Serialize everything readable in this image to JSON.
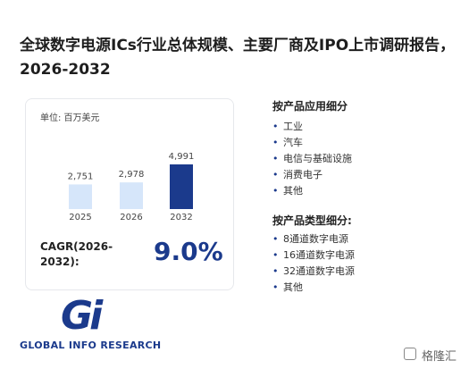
{
  "title": "全球数字电源ICs行业总体规模、主要厂商及IPO上市调研报告，2026-2032",
  "chart_data": {
    "type": "bar",
    "unit": "单位: 百万美元",
    "categories": [
      "2025",
      "2026",
      "2032"
    ],
    "values": [
      2751,
      2978,
      4991
    ],
    "value_labels": [
      "2,751",
      "2,978",
      "4,991"
    ],
    "colors": [
      "#d6e6fa",
      "#d6e6fa",
      "#1b3a8c"
    ],
    "cagr_label": "CAGR(2026-2032):",
    "cagr_value": "9.0%"
  },
  "application": {
    "heading": "按产品应用细分",
    "items": [
      "工业",
      "汽车",
      "电信与基础设施",
      "消费电子",
      "其他"
    ]
  },
  "product_type": {
    "heading": "按产品类型细分:",
    "items": [
      "8通道数字电源",
      "16通道数字电源",
      "32通道数字电源",
      "其他"
    ]
  },
  "logo": {
    "mark": "Gi",
    "name": "GLOBAL INFO RESEARCH"
  },
  "source": "格隆汇"
}
